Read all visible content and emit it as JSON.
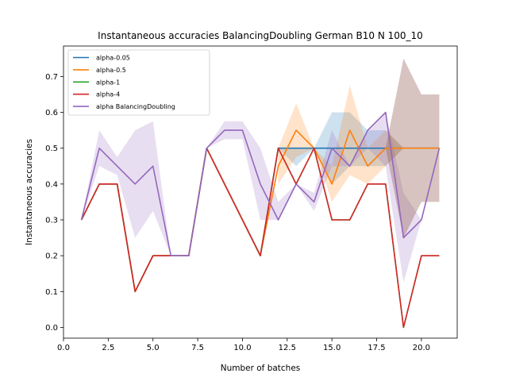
{
  "chart_data": {
    "type": "line",
    "title": "Instantaneous accuracies BalancingDoubling German B10 N 100_10",
    "xlabel": "Number of batches",
    "ylabel": "Instantaneous accuracies",
    "xlim": [
      0,
      22.0
    ],
    "ylim": [
      -0.03,
      0.785
    ],
    "xticks": [
      0,
      2.5,
      5,
      7.5,
      10,
      12.5,
      15,
      17.5,
      20
    ],
    "xtick_labels": [
      "0.0",
      "2.5",
      "5.0",
      "7.5",
      "10.0",
      "12.5",
      "15.0",
      "17.5",
      "20.0"
    ],
    "yticks": [
      0,
      0.1,
      0.2,
      0.3,
      0.4,
      0.5,
      0.6,
      0.7
    ],
    "ytick_labels": [
      "0.0",
      "0.1",
      "0.2",
      "0.3",
      "0.4",
      "0.5",
      "0.6",
      "0.7"
    ],
    "grid": false,
    "legend_position": "top-left",
    "x": [
      1,
      2,
      3,
      4,
      5,
      6,
      7,
      8,
      9,
      10,
      11,
      12,
      13,
      14,
      15,
      16,
      17,
      18,
      19,
      20,
      21
    ],
    "series": [
      {
        "name": "alpha-0.05",
        "color": "#1f77b4",
        "values": [
          0.3,
          0.4,
          0.4,
          0.1,
          0.2,
          0.2,
          0.2,
          0.5,
          0.4,
          0.3,
          0.2,
          0.5,
          0.5,
          0.5,
          0.5,
          0.5,
          0.5,
          0.5,
          0.5,
          0.5,
          0.5
        ],
        "band_lower": [
          null,
          null,
          null,
          null,
          null,
          null,
          null,
          null,
          null,
          null,
          null,
          0.5,
          0.45,
          0.5,
          0.4,
          0.45,
          0.45,
          0.45,
          0.5,
          0.5,
          0.5
        ],
        "band_upper": [
          null,
          null,
          null,
          null,
          null,
          null,
          null,
          null,
          null,
          null,
          null,
          0.5,
          0.5,
          0.5,
          0.6,
          0.6,
          0.55,
          0.55,
          0.5,
          0.5,
          0.5
        ]
      },
      {
        "name": "alpha-0.5",
        "color": "#ff7f0e",
        "values": [
          0.3,
          0.4,
          0.4,
          0.1,
          0.2,
          0.2,
          0.2,
          0.5,
          0.4,
          0.3,
          0.2,
          0.45,
          0.55,
          0.5,
          0.4,
          0.55,
          0.45,
          0.5,
          0.5,
          0.5,
          0.5
        ],
        "band_lower": [
          null,
          null,
          null,
          null,
          null,
          null,
          null,
          null,
          null,
          null,
          null,
          0.4,
          0.475,
          0.5,
          0.35,
          0.425,
          0.4,
          0.45,
          0.5,
          0.5,
          0.5
        ],
        "band_upper": [
          null,
          null,
          null,
          null,
          null,
          null,
          null,
          null,
          null,
          null,
          null,
          0.5,
          0.625,
          0.5,
          0.45,
          0.675,
          0.5,
          0.55,
          0.5,
          0.5,
          0.5
        ]
      },
      {
        "name": "alpha-1",
        "color": "#2ca02c",
        "values": [
          0.3,
          0.4,
          0.4,
          0.1,
          0.2,
          0.2,
          0.2,
          0.5,
          0.4,
          0.3,
          0.2,
          0.5,
          0.4,
          0.5,
          0.3,
          0.3,
          0.4,
          0.4,
          0.0,
          0.2,
          0.2
        ]
      },
      {
        "name": "alpha-4",
        "color": "#d62728",
        "values": [
          0.3,
          0.4,
          0.4,
          0.1,
          0.2,
          0.2,
          0.2,
          0.5,
          0.4,
          0.3,
          0.2,
          0.5,
          0.4,
          0.5,
          0.3,
          0.3,
          0.4,
          0.4,
          0.0,
          0.2,
          0.2
        ]
      },
      {
        "name": "alpha BalancingDoubling",
        "color": "#9467bd",
        "values": [
          0.3,
          0.5,
          0.45,
          0.4,
          0.45,
          0.2,
          0.2,
          0.5,
          0.55,
          0.55,
          0.4,
          0.3,
          0.4,
          0.35,
          0.5,
          0.45,
          0.55,
          0.6,
          0.25,
          0.3,
          0.5
        ],
        "band_lower": [
          0.3,
          0.45,
          0.425,
          0.25,
          0.325,
          0.2,
          0.2,
          0.5,
          0.525,
          0.525,
          0.3,
          0.3,
          0.4,
          0.325,
          0.45,
          0.45,
          0.5,
          0.45,
          0.125,
          0.3,
          0.5
        ],
        "band_upper": [
          0.3,
          0.55,
          0.475,
          0.55,
          0.575,
          0.2,
          0.2,
          0.5,
          0.575,
          0.575,
          0.5,
          0.35,
          0.4,
          0.375,
          0.55,
          0.45,
          0.55,
          0.6,
          0.375,
          0.3,
          0.5
        ]
      }
    ],
    "extra_band": {
      "color": "#8c564b",
      "x": [
        18,
        19,
        20,
        21
      ],
      "lower": [
        0.5,
        0.25,
        0.35,
        0.35
      ],
      "upper": [
        0.5,
        0.75,
        0.65,
        0.65
      ]
    }
  }
}
